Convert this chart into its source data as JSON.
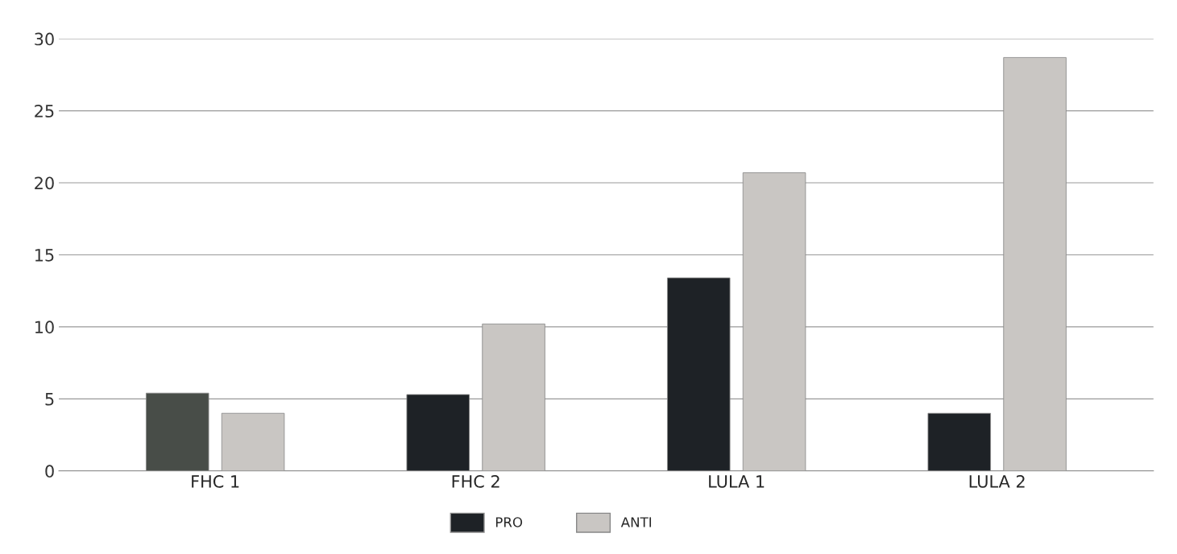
{
  "chart_data": {
    "type": "bar",
    "categories": [
      "FHC 1",
      "FHC 2",
      "LULA 1",
      "LULA 2"
    ],
    "series": [
      {
        "name": "PRO",
        "color": "#1e2226",
        "colors": [
          "#484d48",
          "#1e2226",
          "#1e2226",
          "#1e2226"
        ],
        "values": [
          5.4,
          5.3,
          13.4,
          4.0
        ]
      },
      {
        "name": "ANTI",
        "color": "#c9c6c3",
        "values": [
          4.0,
          10.2,
          20.7,
          28.7
        ]
      }
    ],
    "ylim": [
      0,
      30
    ],
    "yticks": [
      0,
      5,
      10,
      15,
      20,
      25,
      30
    ],
    "grid": "y",
    "legend": "bottom"
  }
}
